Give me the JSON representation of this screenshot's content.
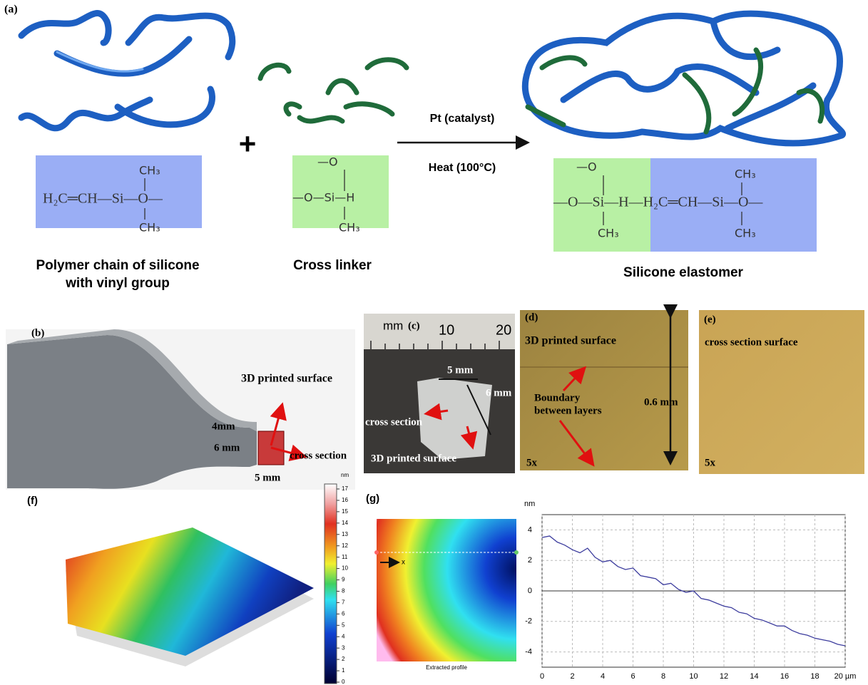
{
  "panel_a": {
    "label": "(a)",
    "plus": "+",
    "polymer_caption": [
      "Polymer chain of silicone",
      "with vinyl group"
    ],
    "crosslinker_caption": "Cross linker",
    "elastomer_caption": "Silicone elastomer",
    "arrow_top": "Pt (catalyst)",
    "arrow_bottom": "Heat (100°C)",
    "polymer_formula": [
      "CH₃",
      "H₂C═CH—Si—O—",
      "CH₃"
    ],
    "crosslinker_formula": [
      "—O",
      "—O—Si—H",
      "CH₃"
    ],
    "elastomer_formula": [
      "—O",
      "—O—Si—H—H₂C═CH—Si—O—",
      "CH₃",
      "CH₃",
      "CH₃"
    ]
  },
  "panel_b": {
    "label": "(b)",
    "surface": "3D printed surface",
    "depth": "4mm",
    "height": "6 mm",
    "section": "cross section",
    "width": "5 mm"
  },
  "panel_c": {
    "label": "(c)",
    "ruler_unit": "mm",
    "ruler_10": "10",
    "ruler_20": "20",
    "width": "5 mm",
    "height": "6 mm",
    "section": "cross section",
    "surface": "3D printed surface"
  },
  "panel_d": {
    "label": "(d)",
    "title": "3D printed surface",
    "boundary": [
      "Boundary",
      "between layers"
    ],
    "scale": "0.6 mm",
    "mag": "5x"
  },
  "panel_e": {
    "label": "(e)",
    "title": "cross section surface",
    "mag": "5x"
  },
  "panel_f": {
    "label": "(f)",
    "colorbar_unit": "nm",
    "colorbar_ticks": [
      0,
      1,
      2,
      3,
      4,
      5,
      6,
      7,
      8,
      9,
      10,
      11,
      12,
      13,
      14,
      15,
      16,
      17
    ]
  },
  "panel_g": {
    "label": "(g)",
    "axis_marker": "x",
    "map_caption": "Extracted profile"
  },
  "chart_data": {
    "type": "line",
    "ylabel": "nm",
    "x": [
      0,
      0.5,
      1,
      1.5,
      2,
      2.5,
      3,
      3.5,
      4,
      4.5,
      5,
      5.5,
      6,
      6.5,
      7,
      7.5,
      8,
      8.5,
      9,
      9.5,
      10,
      10.5,
      11,
      11.5,
      12,
      12.5,
      13,
      13.5,
      14,
      14.5,
      15,
      15.5,
      16,
      16.5,
      17,
      17.5,
      18,
      18.5,
      19,
      19.5,
      20
    ],
    "values": [
      3.5,
      3.6,
      3.2,
      3.0,
      2.7,
      2.5,
      2.8,
      2.2,
      1.9,
      2.0,
      1.6,
      1.4,
      1.5,
      1.0,
      0.9,
      0.8,
      0.4,
      0.5,
      0.1,
      -0.1,
      0.0,
      -0.5,
      -0.6,
      -0.8,
      -1.0,
      -1.1,
      -1.4,
      -1.5,
      -1.8,
      -1.9,
      -2.1,
      -2.3,
      -2.3,
      -2.6,
      -2.8,
      -2.9,
      -3.1,
      -3.2,
      -3.3,
      -3.5,
      -3.6
    ],
    "color": "#3d3d9e",
    "xlim": [
      0,
      20
    ],
    "ylim": [
      -5,
      5
    ],
    "xticks": [
      0,
      2,
      4,
      6,
      8,
      10,
      12,
      14,
      16,
      18,
      {
        "value": 20,
        "label": "20 µm"
      }
    ],
    "yticks": [
      -4,
      -2,
      0,
      2,
      4
    ],
    "grid": true
  }
}
